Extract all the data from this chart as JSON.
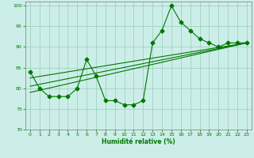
{
  "xlabel": "Humidité relative (%)",
  "ylabel": "",
  "xlim": [
    -0.5,
    23.5
  ],
  "ylim": [
    70,
    101
  ],
  "xticks": [
    0,
    1,
    2,
    3,
    4,
    5,
    6,
    7,
    8,
    9,
    10,
    11,
    12,
    13,
    14,
    15,
    16,
    17,
    18,
    19,
    20,
    21,
    22,
    23
  ],
  "yticks": [
    70,
    75,
    80,
    85,
    90,
    95,
    100
  ],
  "bg_color": "#cceee8",
  "grid_color": "#99ccbb",
  "line_color": "#007700",
  "line1_x": [
    0,
    1,
    2,
    3,
    4,
    5,
    6,
    7,
    8,
    9,
    10,
    11,
    12,
    13,
    14,
    15,
    16,
    17,
    18,
    19,
    20,
    21,
    22,
    23
  ],
  "line1_y": [
    84,
    80,
    78,
    78,
    78,
    80,
    87,
    83,
    77,
    77,
    76,
    76,
    77,
    91,
    94,
    100,
    96,
    94,
    92,
    91,
    90,
    91,
    91,
    91
  ],
  "line2_x": [
    0,
    23
  ],
  "line2_y": [
    79,
    91
  ],
  "line3_x": [
    0,
    23
  ],
  "line3_y": [
    80.5,
    91
  ],
  "line4_x": [
    0,
    23
  ],
  "line4_y": [
    82.5,
    91
  ]
}
